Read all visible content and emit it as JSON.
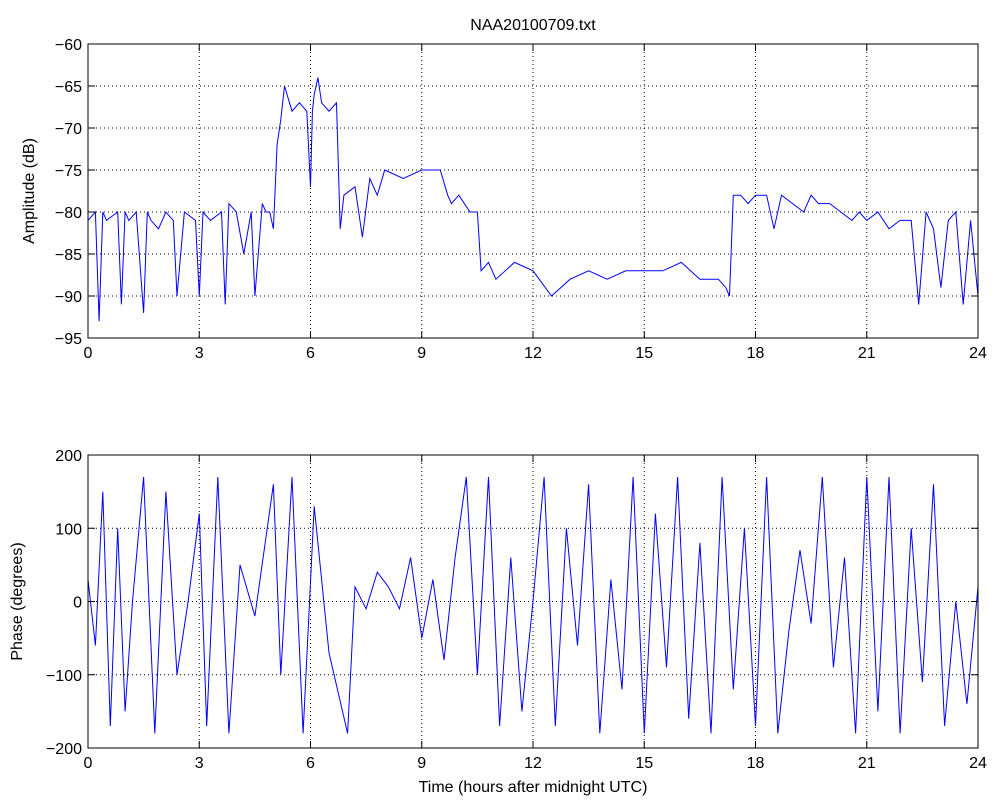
{
  "figure": {
    "title": "NAA20100709.txt"
  },
  "chart_data": [
    {
      "type": "line",
      "title": "NAA20100709.txt",
      "xlabel": "",
      "ylabel": "Amplitude (dB)",
      "xlim": [
        0,
        24
      ],
      "ylim": [
        -95,
        -60
      ],
      "xticks": [
        0,
        3,
        6,
        9,
        12,
        15,
        18,
        21,
        24
      ],
      "yticks": [
        -95,
        -90,
        -85,
        -80,
        -75,
        -70,
        -65,
        -60
      ],
      "grid": true,
      "color": "#0000ff",
      "series": [
        {
          "x": [
            0,
            0.2,
            0.3,
            0.4,
            0.5,
            0.8,
            0.9,
            1.0,
            1.1,
            1.3,
            1.5,
            1.6,
            1.7,
            1.9,
            2.1,
            2.3,
            2.4,
            2.6,
            2.9,
            3.0,
            3.1,
            3.3,
            3.6,
            3.7,
            3.8,
            4.0,
            4.2,
            4.4,
            4.5,
            4.7,
            4.8,
            4.9,
            5.0,
            5.1,
            5.2,
            5.3,
            5.5,
            5.7,
            5.9,
            6.0,
            6.05,
            6.1,
            6.2,
            6.3,
            6.5,
            6.7,
            6.8,
            6.9,
            7.2,
            7.4,
            7.6,
            7.8,
            8.0,
            8.5,
            9.0,
            9.5,
            9.7,
            9.8,
            10.0,
            10.3,
            10.5,
            10.6,
            10.8,
            11.0,
            11.5,
            12.0,
            12.5,
            13.0,
            13.5,
            14.0,
            14.5,
            15.0,
            15.5,
            16.0,
            16.5,
            17.0,
            17.2,
            17.3,
            17.4,
            17.6,
            17.8,
            18.0,
            18.3,
            18.5,
            18.7,
            19.0,
            19.3,
            19.5,
            19.7,
            20.0,
            20.3,
            20.6,
            20.8,
            21.0,
            21.3,
            21.6,
            21.9,
            22.2,
            22.4,
            22.6,
            22.8,
            23.0,
            23.2,
            23.4,
            23.6,
            23.8,
            24.0
          ],
          "y": [
            -81,
            -80,
            -93,
            -80,
            -81,
            -80,
            -91,
            -80,
            -81,
            -80,
            -92,
            -80,
            -81,
            -82,
            -80,
            -81,
            -90,
            -80,
            -81,
            -90,
            -80,
            -81,
            -80,
            -91,
            -79,
            -80,
            -85,
            -80,
            -90,
            -79,
            -80,
            -80,
            -82,
            -72,
            -69,
            -65,
            -68,
            -67,
            -68,
            -77,
            -68,
            -66,
            -64,
            -67,
            -68,
            -67,
            -82,
            -78,
            -77,
            -83,
            -76,
            -78,
            -75,
            -76,
            -75,
            -75,
            -78,
            -79,
            -78,
            -80,
            -80,
            -87,
            -86,
            -88,
            -86,
            -87,
            -90,
            -88,
            -87,
            -88,
            -87,
            -87,
            -87,
            -86,
            -88,
            -88,
            -89,
            -90,
            -78,
            -78,
            -79,
            -78,
            -78,
            -82,
            -78,
            -79,
            -80,
            -78,
            -79,
            -79,
            -80,
            -81,
            -80,
            -81,
            -80,
            -82,
            -81,
            -81,
            -91,
            -80,
            -82,
            -89,
            -81,
            -80,
            -91,
            -81,
            -90
          ]
        }
      ]
    },
    {
      "type": "line",
      "title": "",
      "xlabel": "Time (hours after midnight UTC)",
      "ylabel": "Phase (degrees)",
      "xlim": [
        0,
        24
      ],
      "ylim": [
        -200,
        200
      ],
      "xticks": [
        0,
        3,
        6,
        9,
        12,
        15,
        18,
        21,
        24
      ],
      "yticks": [
        -200,
        -100,
        0,
        100,
        200
      ],
      "grid": true,
      "color": "#0000ff",
      "series": [
        {
          "x": [
            0,
            0.2,
            0.4,
            0.6,
            0.8,
            1.0,
            1.2,
            1.5,
            1.8,
            2.1,
            2.4,
            2.7,
            3.0,
            3.2,
            3.5,
            3.8,
            4.1,
            4.5,
            5.0,
            5.2,
            5.5,
            5.8,
            6.1,
            6.5,
            7.0,
            7.2,
            7.5,
            7.8,
            8.1,
            8.4,
            8.7,
            9.0,
            9.3,
            9.6,
            9.9,
            10.2,
            10.5,
            10.8,
            11.1,
            11.4,
            11.7,
            12.0,
            12.3,
            12.6,
            12.9,
            13.2,
            13.5,
            13.8,
            14.1,
            14.4,
            14.7,
            15.0,
            15.3,
            15.6,
            15.9,
            16.2,
            16.5,
            16.8,
            17.1,
            17.4,
            17.7,
            18.0,
            18.3,
            18.6,
            18.9,
            19.2,
            19.5,
            19.8,
            20.1,
            20.4,
            20.7,
            21.0,
            21.3,
            21.6,
            21.9,
            22.2,
            22.5,
            22.8,
            23.1,
            23.4,
            23.7,
            24.0
          ],
          "y": [
            30,
            -60,
            150,
            -170,
            100,
            -150,
            0,
            170,
            -180,
            150,
            -100,
            0,
            120,
            -170,
            170,
            -180,
            50,
            -20,
            160,
            -100,
            170,
            -180,
            130,
            -70,
            -180,
            20,
            -10,
            40,
            20,
            -10,
            60,
            -50,
            30,
            -80,
            60,
            170,
            -100,
            170,
            -170,
            60,
            -150,
            0,
            170,
            -170,
            100,
            -60,
            160,
            -180,
            30,
            -120,
            170,
            -180,
            120,
            -90,
            170,
            -160,
            80,
            -180,
            170,
            -120,
            100,
            -170,
            170,
            -180,
            -40,
            70,
            -30,
            170,
            -90,
            60,
            -180,
            170,
            -150,
            170,
            -180,
            100,
            -110,
            160,
            -170,
            0,
            -140,
            20
          ]
        }
      ]
    }
  ]
}
